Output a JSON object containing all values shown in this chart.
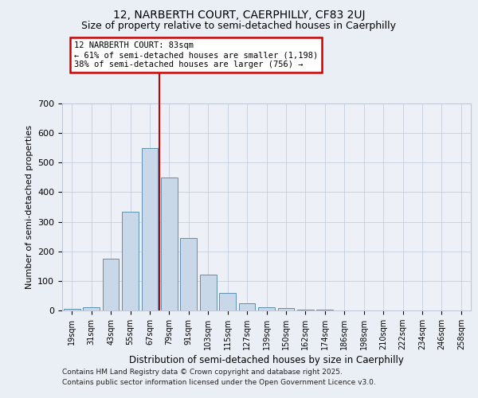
{
  "title1": "12, NARBERTH COURT, CAERPHILLY, CF83 2UJ",
  "title2": "Size of property relative to semi-detached houses in Caerphilly",
  "xlabel": "Distribution of semi-detached houses by size in Caerphilly",
  "ylabel": "Number of semi-detached properties",
  "bar_labels": [
    "19sqm",
    "31sqm",
    "43sqm",
    "55sqm",
    "67sqm",
    "79sqm",
    "91sqm",
    "103sqm",
    "115sqm",
    "127sqm",
    "139sqm",
    "150sqm",
    "162sqm",
    "174sqm",
    "186sqm",
    "198sqm",
    "210sqm",
    "222sqm",
    "234sqm",
    "246sqm",
    "258sqm"
  ],
  "bar_values": [
    5,
    12,
    175,
    335,
    550,
    450,
    245,
    120,
    58,
    25,
    10,
    7,
    3,
    2,
    0,
    0,
    0,
    0,
    0,
    0,
    0
  ],
  "bar_color": "#c8d8e8",
  "bar_edge_color": "#6090b0",
  "vline_index": 5.0,
  "property_label": "12 NARBERTH COURT: 83sqm",
  "annotation_line1": "← 61% of semi-detached houses are smaller (1,198)",
  "annotation_line2": "38% of semi-detached houses are larger (756) →",
  "vline_color": "#cc0000",
  "annotation_box_edge": "#cc0000",
  "ylim": [
    0,
    700
  ],
  "yticks": [
    0,
    100,
    200,
    300,
    400,
    500,
    600,
    700
  ],
  "footnote1": "Contains HM Land Registry data © Crown copyright and database right 2025.",
  "footnote2": "Contains public sector information licensed under the Open Government Licence v3.0.",
  "bg_color": "#eaeff5",
  "plot_bg_color": "#edf1f7",
  "grid_color": "#c0c8d8",
  "title_fontsize": 10,
  "subtitle_fontsize": 9
}
